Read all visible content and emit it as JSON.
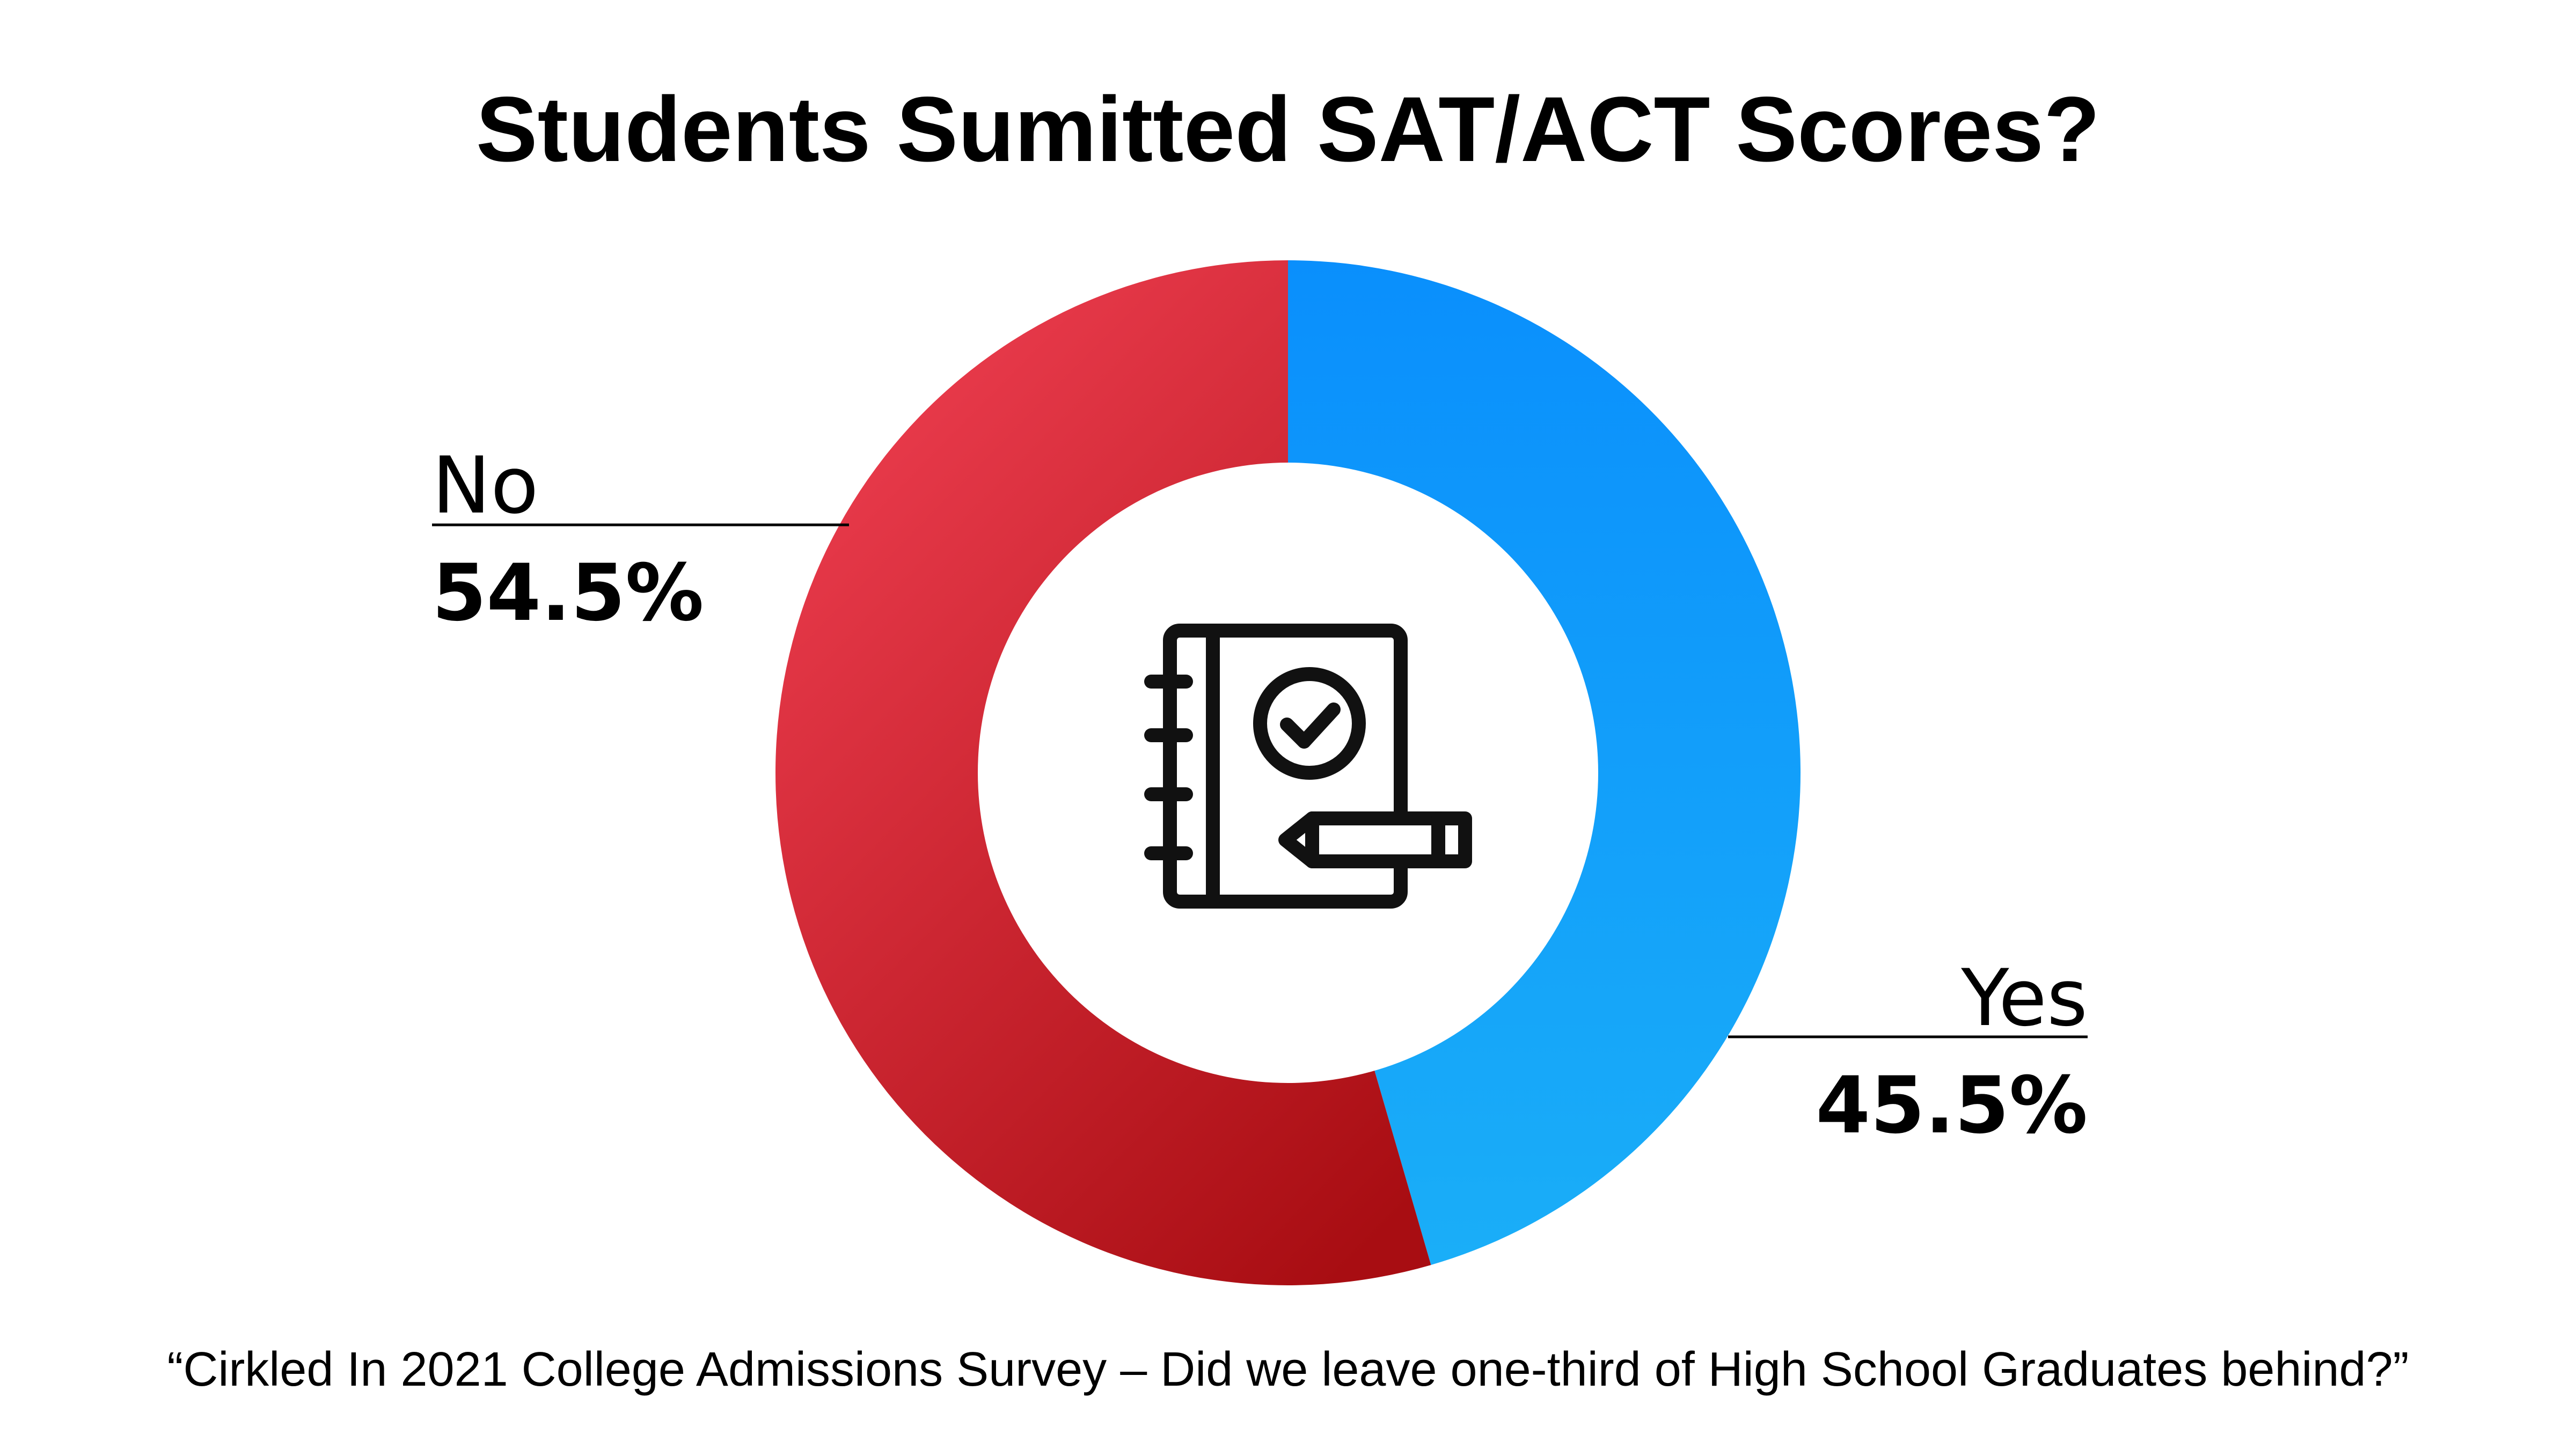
{
  "chart_data": {
    "type": "pie",
    "title": "Students Sumitted SAT/ACT Scores?",
    "source": "“Cirkled In 2021 College Admissions Survey – Did we leave one-third of High School Graduates behind?”",
    "categories": [
      "Yes",
      "No"
    ],
    "values": [
      45.5,
      54.5
    ],
    "value_labels": [
      "45.5%",
      "54.5%"
    ],
    "colors": {
      "Yes": [
        "#0a8ffc",
        "#1aaef8"
      ],
      "No": [
        "#ee3e50",
        "#a80d12"
      ]
    },
    "center_icon": "notebook-check-pencil-icon",
    "legend": "none"
  }
}
